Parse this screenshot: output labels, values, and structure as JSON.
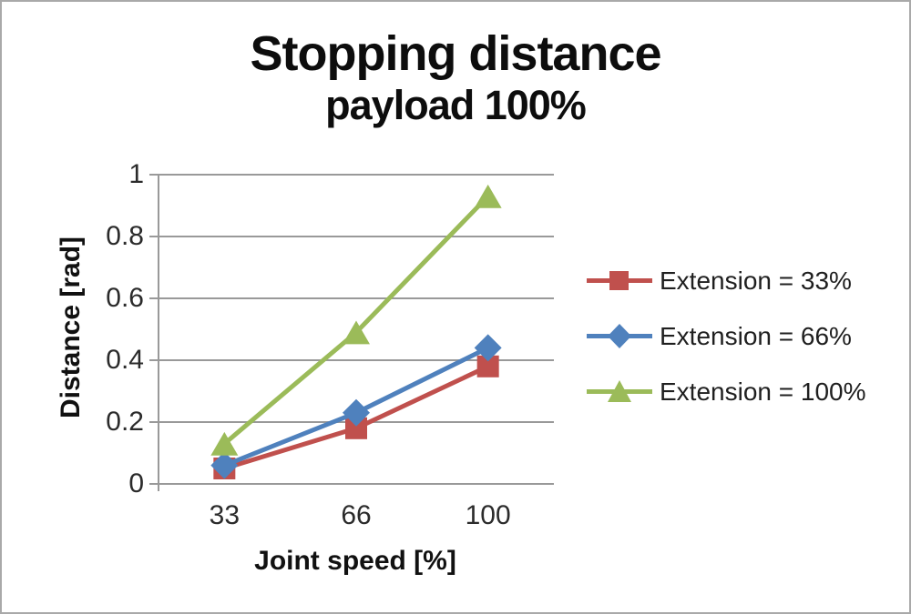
{
  "title": "Stopping distance",
  "subtitle": "payload 100%",
  "chart_data": {
    "type": "line",
    "categories": [
      33,
      66,
      100
    ],
    "series": [
      {
        "name": "Extension = 33%",
        "marker": "square",
        "color": "#C0504D",
        "values": [
          0.05,
          0.18,
          0.38
        ]
      },
      {
        "name": "Extension = 66%",
        "marker": "diamond",
        "color": "#4F81BD",
        "values": [
          0.06,
          0.23,
          0.44
        ]
      },
      {
        "name": "Extension = 100%",
        "marker": "triangle",
        "color": "#9BBB59",
        "values": [
          0.13,
          0.49,
          0.93
        ]
      }
    ],
    "xlabel": "Joint speed [%]",
    "ylabel": "Distance [rad]",
    "ylim": [
      0,
      1
    ],
    "yticks": [
      "0",
      "0.2",
      "0.4",
      "0.6",
      "0.8",
      "1"
    ],
    "xticks": [
      "33",
      "66",
      "100"
    ],
    "grid": true,
    "gridline_color": "#999999",
    "axis_color": "#999999",
    "legend_position": "right"
  }
}
